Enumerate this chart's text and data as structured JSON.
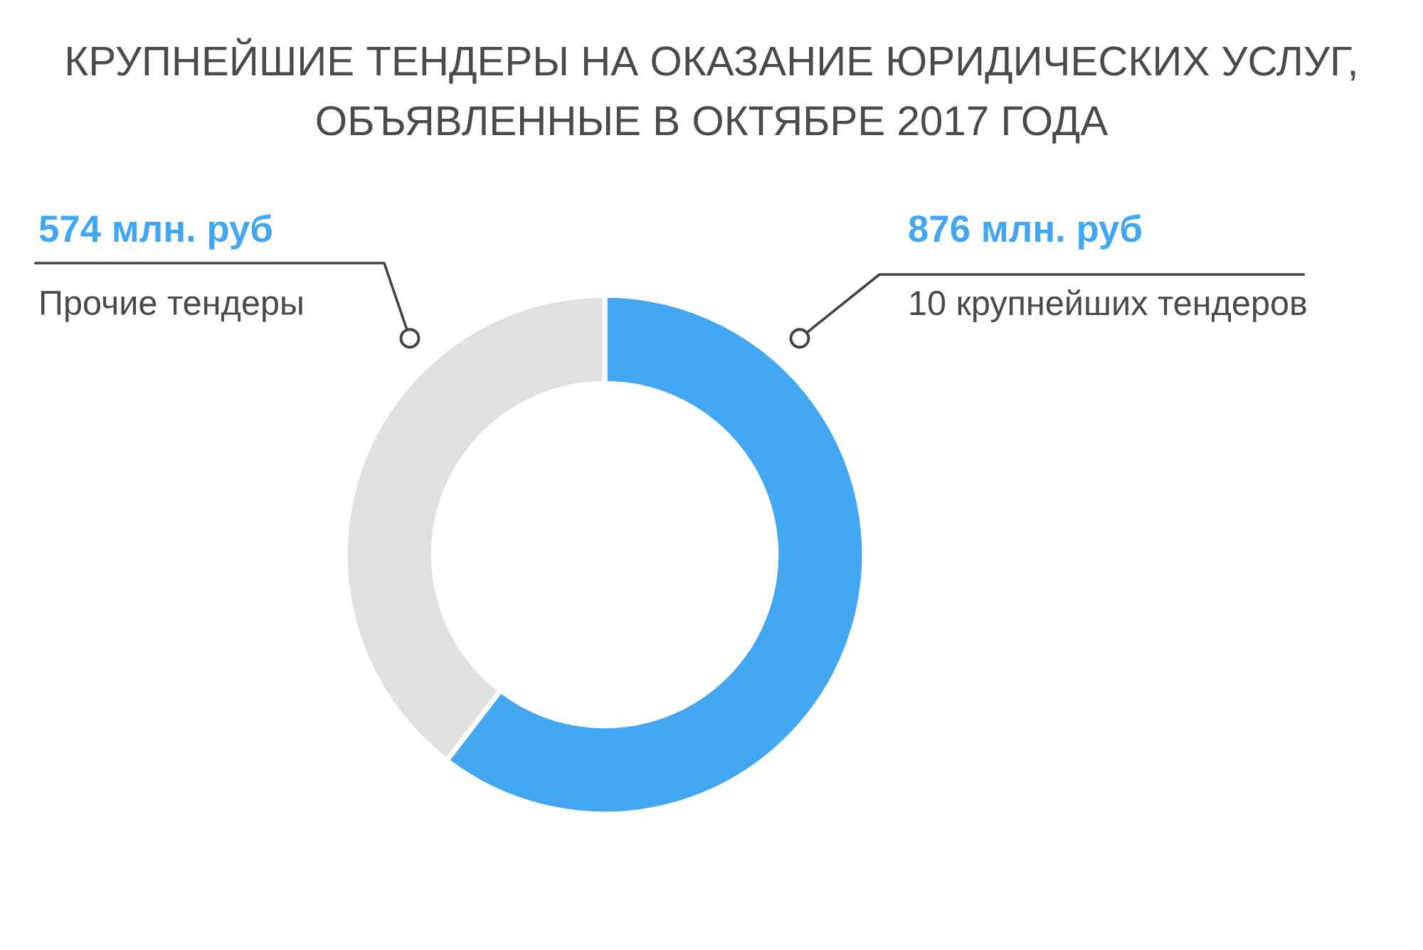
{
  "chart_data": {
    "type": "donut",
    "title": "КРУПНЕЙШИЕ ТЕНДЕРЫ НА ОКАЗАНИЕ ЮРИДИЧЕСКИХ УСЛУГ,\nОБЪЯВЛЕННЫЕ В ОКТЯБРЕ 2017 ГОДА",
    "categories": [
      "10 крупнейших тендеров",
      "Прочие тендеры"
    ],
    "values": [
      876,
      574
    ],
    "colors": [
      "#42a6f0",
      "#e0e0e0"
    ],
    "value_labels": [
      "876 млн. руб",
      "574 млн. руб"
    ],
    "legend": false
  }
}
